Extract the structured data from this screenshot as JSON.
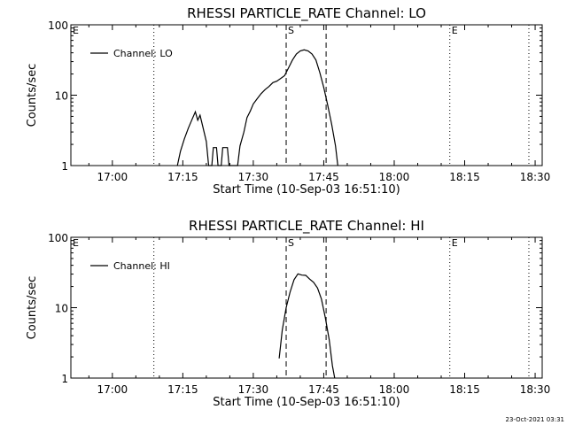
{
  "footer_timestamp": "23-Oct-2021 03:31",
  "chart_data": [
    {
      "type": "line",
      "title": "RHESSI PARTICLE_RATE Channel: LO",
      "xlabel": "Start Time (10-Sep-03 16:51:10)",
      "ylabel": "Counts/sec",
      "xlim": [
        "16:51:10",
        "18:31:30"
      ],
      "ylim": [
        1,
        100
      ],
      "yscale": "log",
      "x_ticks": [
        "17:00",
        "17:15",
        "17:30",
        "17:45",
        "18:00",
        "18:15",
        "18:30"
      ],
      "y_ticks": [
        "1",
        "10",
        "100"
      ],
      "legend": {
        "position": "top-left",
        "entries": [
          "Channel: LO"
        ]
      },
      "markers": [
        {
          "label": "E",
          "time": "16:51:10",
          "style": "dotted"
        },
        {
          "label": "",
          "time": "17:08:50",
          "style": "dotted"
        },
        {
          "label": "S",
          "time": "17:37:00",
          "style": "dashed"
        },
        {
          "label": "",
          "time": "17:45:30",
          "style": "dashed"
        },
        {
          "label": "E",
          "time": "18:11:50",
          "style": "dotted"
        },
        {
          "label": "",
          "time": "18:28:40",
          "style": "dotted"
        }
      ],
      "series": [
        {
          "name": "Channel: LO",
          "points": [
            [
              "17:13:50",
              1.0
            ],
            [
              "17:14:30",
              1.6
            ],
            [
              "17:15:20",
              2.4
            ],
            [
              "17:16:10",
              3.4
            ],
            [
              "17:17:00",
              4.6
            ],
            [
              "17:17:40",
              5.8
            ],
            [
              "17:18:10",
              4.4
            ],
            [
              "17:18:40",
              5.2
            ],
            [
              "17:19:20",
              3.4
            ],
            [
              "17:20:00",
              2.2
            ],
            [
              "17:20:30",
              1.0
            ],
            [
              "17:21:10",
              1.0
            ],
            [
              "17:21:30",
              1.8
            ],
            [
              "17:22:10",
              1.8
            ],
            [
              "17:22:30",
              1.0
            ],
            [
              "17:23:10",
              1.0
            ],
            [
              "17:23:30",
              1.8
            ],
            [
              "17:24:30",
              1.8
            ],
            [
              "17:24:50",
              1.0
            ],
            [
              "17:26:40",
              1.0
            ],
            [
              "17:27:10",
              1.9
            ],
            [
              "17:28:00",
              3.0
            ],
            [
              "17:28:40",
              4.8
            ],
            [
              "17:29:20",
              5.9
            ],
            [
              "17:30:00",
              7.5
            ],
            [
              "17:30:50",
              8.9
            ],
            [
              "17:31:40",
              10.5
            ],
            [
              "17:32:30",
              12.0
            ],
            [
              "17:33:20",
              13.3
            ],
            [
              "17:34:10",
              15.1
            ],
            [
              "17:35:00",
              15.8
            ],
            [
              "17:35:50",
              17.3
            ],
            [
              "17:36:40",
              19.0
            ],
            [
              "17:37:30",
              24.5
            ],
            [
              "17:38:20",
              31.6
            ],
            [
              "17:39:10",
              38.5
            ],
            [
              "17:40:00",
              42.6
            ],
            [
              "17:40:50",
              44.1
            ],
            [
              "17:41:40",
              42.6
            ],
            [
              "17:42:30",
              38.5
            ],
            [
              "17:43:20",
              31.6
            ],
            [
              "17:44:10",
              20.9
            ],
            [
              "17:45:00",
              12.9
            ],
            [
              "17:45:50",
              7.2
            ],
            [
              "17:46:40",
              3.9
            ],
            [
              "17:47:30",
              1.9
            ],
            [
              "17:48:00",
              1.0
            ]
          ]
        }
      ]
    },
    {
      "type": "line",
      "title": "RHESSI PARTICLE_RATE Channel: HI",
      "xlabel": "Start Time (10-Sep-03 16:51:10)",
      "ylabel": "Counts/sec",
      "xlim": [
        "16:51:10",
        "18:31:30"
      ],
      "ylim": [
        1,
        100
      ],
      "yscale": "log",
      "x_ticks": [
        "17:00",
        "17:15",
        "17:30",
        "17:45",
        "18:00",
        "18:15",
        "18:30"
      ],
      "y_ticks": [
        "1",
        "10",
        "100"
      ],
      "legend": {
        "position": "top-left",
        "entries": [
          "Channel: HI"
        ]
      },
      "markers": [
        {
          "label": "E",
          "time": "16:51:10",
          "style": "dotted"
        },
        {
          "label": "",
          "time": "17:08:50",
          "style": "dotted"
        },
        {
          "label": "S",
          "time": "17:37:00",
          "style": "dashed"
        },
        {
          "label": "",
          "time": "17:45:30",
          "style": "dashed"
        },
        {
          "label": "E",
          "time": "18:11:50",
          "style": "dotted"
        },
        {
          "label": "",
          "time": "18:28:40",
          "style": "dotted"
        }
      ],
      "series": [
        {
          "name": "Channel: HI",
          "points": [
            [
              "17:35:30",
              1.9
            ],
            [
              "17:36:10",
              4.8
            ],
            [
              "17:37:00",
              10.0
            ],
            [
              "17:37:50",
              16.6
            ],
            [
              "17:38:40",
              25.0
            ],
            [
              "17:39:30",
              30.2
            ],
            [
              "17:40:20",
              29.0
            ],
            [
              "17:41:10",
              28.8
            ],
            [
              "17:42:00",
              25.5
            ],
            [
              "17:42:50",
              22.9
            ],
            [
              "17:43:40",
              19.0
            ],
            [
              "17:44:30",
              13.3
            ],
            [
              "17:45:20",
              7.2
            ],
            [
              "17:46:10",
              3.5
            ],
            [
              "17:46:50",
              1.5
            ],
            [
              "17:47:20",
              1.0
            ]
          ]
        }
      ]
    }
  ]
}
